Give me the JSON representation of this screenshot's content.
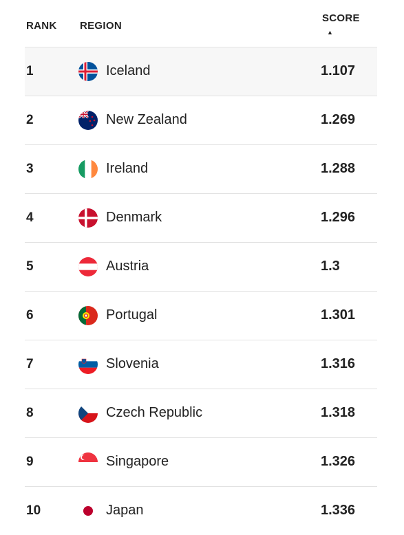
{
  "header": {
    "rank": "RANK",
    "region": "REGION",
    "score": "SCORE",
    "sort_indicator": "▲"
  },
  "rows": [
    {
      "rank": "1",
      "country": "Iceland",
      "score": "1.107",
      "flag": "flag-iceland-icon"
    },
    {
      "rank": "2",
      "country": "New Zealand",
      "score": "1.269",
      "flag": "flag-new-zealand-icon"
    },
    {
      "rank": "3",
      "country": "Ireland",
      "score": "1.288",
      "flag": "flag-ireland-icon"
    },
    {
      "rank": "4",
      "country": "Denmark",
      "score": "1.296",
      "flag": "flag-denmark-icon"
    },
    {
      "rank": "5",
      "country": "Austria",
      "score": "1.3",
      "flag": "flag-austria-icon"
    },
    {
      "rank": "6",
      "country": "Portugal",
      "score": "1.301",
      "flag": "flag-portugal-icon"
    },
    {
      "rank": "7",
      "country": "Slovenia",
      "score": "1.316",
      "flag": "flag-slovenia-icon"
    },
    {
      "rank": "8",
      "country": "Czech Republic",
      "score": "1.318",
      "flag": "flag-czech-republic-icon"
    },
    {
      "rank": "9",
      "country": "Singapore",
      "score": "1.326",
      "flag": "flag-singapore-icon"
    },
    {
      "rank": "10",
      "country": "Japan",
      "score": "1.336",
      "flag": "flag-japan-icon"
    }
  ]
}
